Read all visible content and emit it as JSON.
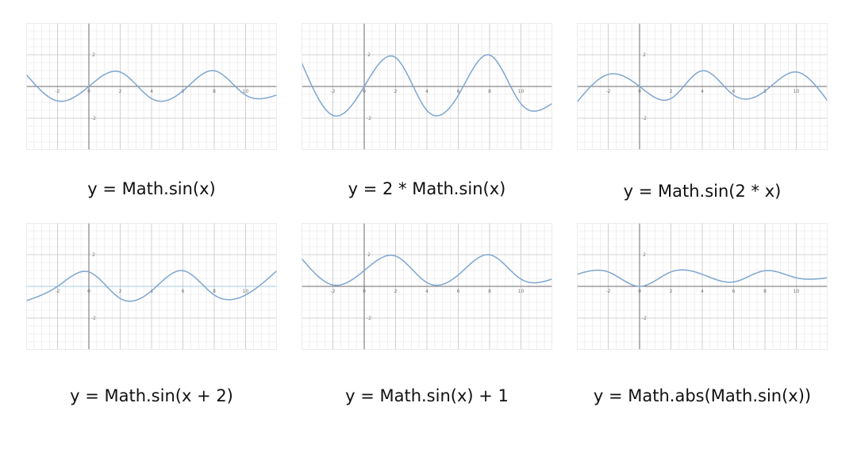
{
  "chart_data": [
    {
      "type": "line",
      "title": "y = Math.sin(x)",
      "xlim": [
        -4,
        12
      ],
      "ylim": [
        -4,
        4
      ],
      "x_ticks": [
        -2,
        0,
        2,
        4,
        6,
        8,
        10
      ],
      "y_ticks": [
        2,
        -2
      ],
      "highlight_zero": false,
      "curve_color": "#7ea6cf",
      "series": [
        {
          "x": [
            -4,
            -2,
            0,
            2,
            4,
            6,
            8,
            10,
            12
          ],
          "y": [
            0.76,
            -0.91,
            0,
            0.91,
            -0.76,
            -0.28,
            0.99,
            -0.54,
            -0.54
          ]
        }
      ]
    },
    {
      "type": "line",
      "title": "y = 2 * Math.sin(x)",
      "xlim": [
        -4,
        12
      ],
      "ylim": [
        -4,
        4
      ],
      "x_ticks": [
        -2,
        0,
        2,
        4,
        6,
        8,
        10
      ],
      "y_ticks": [
        2,
        -2
      ],
      "highlight_zero": false,
      "curve_color": "#7ea6cf",
      "series": [
        {
          "x": [
            -4,
            -2,
            0,
            2,
            4,
            6,
            8,
            10,
            12
          ],
          "y": [
            1.51,
            -1.82,
            0,
            1.82,
            -1.51,
            -0.56,
            1.98,
            -1.09,
            -1.07
          ]
        }
      ]
    },
    {
      "type": "line",
      "title": "y = Math.sin(2 * x)",
      "xlim": [
        -4,
        12
      ],
      "ylim": [
        -4,
        4
      ],
      "x_ticks": [
        -2,
        0,
        2,
        4,
        6,
        8,
        10
      ],
      "y_ticks": [
        2,
        -2
      ],
      "highlight_zero": false,
      "curve_color": "#7ea6cf",
      "series": [
        {
          "x": [
            -4,
            -2,
            0,
            2,
            4,
            6,
            8,
            10,
            12
          ],
          "y": [
            -0.99,
            0.76,
            0,
            -0.76,
            0.99,
            -0.54,
            -0.29,
            0.91,
            -0.91
          ]
        }
      ]
    },
    {
      "type": "line",
      "title": "y = Math.sin(x + 2)",
      "xlim": [
        -4,
        12
      ],
      "ylim": [
        -4,
        4
      ],
      "x_ticks": [
        -2,
        0,
        2,
        4,
        6,
        8,
        10
      ],
      "y_ticks": [
        2,
        -2
      ],
      "highlight_zero": true,
      "curve_color": "#7ea6cf",
      "series": [
        {
          "x": [
            -4,
            -2,
            0,
            2,
            4,
            6,
            8,
            10,
            12
          ],
          "y": [
            -0.91,
            0,
            0.91,
            -0.76,
            -0.28,
            0.99,
            -0.54,
            -0.54,
            0.99
          ]
        }
      ]
    },
    {
      "type": "line",
      "title": "y = Math.sin(x) + 1",
      "xlim": [
        -4,
        12
      ],
      "ylim": [
        -4,
        4
      ],
      "x_ticks": [
        -2,
        0,
        2,
        4,
        6,
        8,
        10
      ],
      "y_ticks": [
        2,
        -2
      ],
      "highlight_zero": false,
      "curve_color": "#7ea6cf",
      "series": [
        {
          "x": [
            -4,
            -2,
            0,
            2,
            4,
            6,
            8,
            10,
            12
          ],
          "y": [
            1.76,
            0.09,
            1,
            1.91,
            0.24,
            0.72,
            1.99,
            0.46,
            0.46
          ]
        }
      ]
    },
    {
      "type": "line",
      "title": "y = Math.abs(Math.sin(x))",
      "xlim": [
        -4,
        12
      ],
      "ylim": [
        -4,
        4
      ],
      "x_ticks": [
        -2,
        0,
        2,
        4,
        6,
        8,
        10
      ],
      "y_ticks": [
        2,
        -2
      ],
      "highlight_zero": false,
      "curve_color": "#7ea6cf",
      "series": [
        {
          "x": [
            -4,
            -2,
            0,
            2,
            4,
            6,
            8,
            10,
            12
          ],
          "y": [
            0.76,
            0.91,
            0,
            0.91,
            0.76,
            0.28,
            0.99,
            0.54,
            0.54
          ]
        }
      ]
    }
  ]
}
